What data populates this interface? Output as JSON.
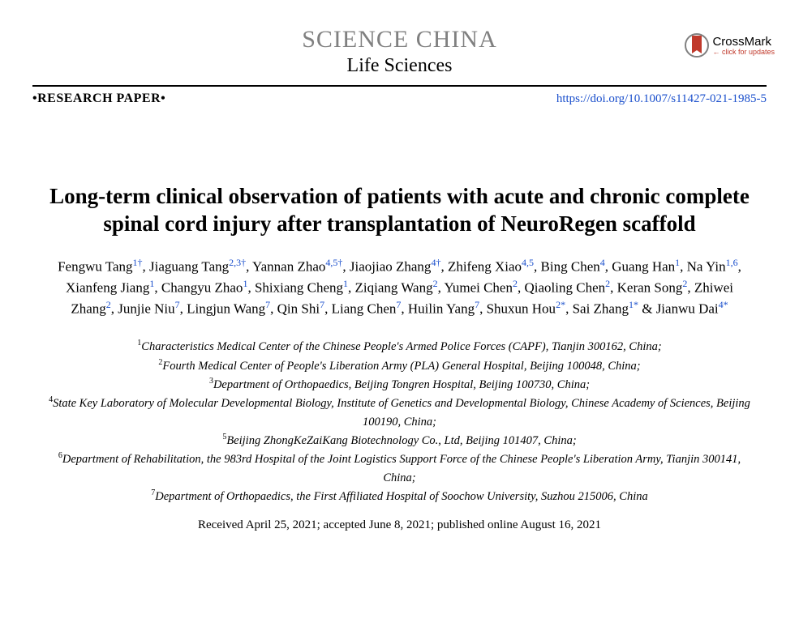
{
  "journal": {
    "main": "SCIENCE CHINA",
    "sub": "Life Sciences"
  },
  "crossmark": {
    "title": "CrossMark",
    "subtitle": "← click for updates",
    "icon_fill": "#c0392b",
    "icon_stroke": "#808080"
  },
  "section_type": "•RESEARCH PAPER•",
  "doi": "https://doi.org/10.1007/s11427-021-1985-5",
  "title": "Long-term clinical observation of patients with acute and chronic complete spinal cord injury after transplantation of NeuroRegen scaffold",
  "authors_html": "Fengwu Tang<sup>1†</sup>, Jiaguang Tang<sup>2,3†</sup>, Yannan Zhao<sup>4,5†</sup>, Jiaojiao Zhang<sup>4†</sup>, Zhifeng Xiao<sup>4,5</sup>, Bing Chen<sup>4</sup>, Guang Han<sup>1</sup>, Na Yin<sup>1,6</sup>, Xianfeng Jiang<sup>1</sup>, Changyu Zhao<sup>1</sup>, Shixiang Cheng<sup>1</sup>, Ziqiang Wang<sup>2</sup>, Yumei Chen<sup>2</sup>, Qiaoling Chen<sup>2</sup>, Keran Song<sup>2</sup>, Zhiwei Zhang<sup>2</sup>, Junjie Niu<sup>7</sup>, Lingjun Wang<sup>7</sup>, Qin Shi<sup>7</sup>, Liang Chen<sup>7</sup>, Huilin Yang<sup>7</sup>, Shuxun Hou<sup>2*</sup>, Sai Zhang<sup>1*</sup> &amp; Jianwu Dai<sup>4*</sup>",
  "affiliations": [
    "<sup>1</sup>Characteristics Medical Center of the Chinese People's Armed Police Forces (CAPF), Tianjin 300162, China;",
    "<sup>2</sup>Fourth Medical Center of People's Liberation Army (PLA) General Hospital, Beijing 100048, China;",
    "<sup>3</sup>Department of Orthopaedics, Beijing Tongren Hospital, Beijing 100730, China;",
    "<sup>4</sup>State Key Laboratory of Molecular Developmental Biology, Institute of Genetics and Developmental Biology, Chinese Academy of Sciences, Beijing 100190, China;",
    "<sup>5</sup>Beijing ZhongKeZaiKang Biotechnology Co., Ltd, Beijing 101407, China;",
    "<sup>6</sup>Department of Rehabilitation, the 983rd Hospital of the Joint Logistics Support Force of the Chinese People's Liberation Army, Tianjin 300141, China;",
    "<sup>7</sup>Department of Orthopaedics, the First Affiliated Hospital of Soochow University, Suzhou 215006, China"
  ],
  "dates": "Received April 25, 2021; accepted June 8, 2021; published online August 16, 2021",
  "colors": {
    "link": "#1a4fcc",
    "gray": "#808080",
    "text": "#000000"
  }
}
